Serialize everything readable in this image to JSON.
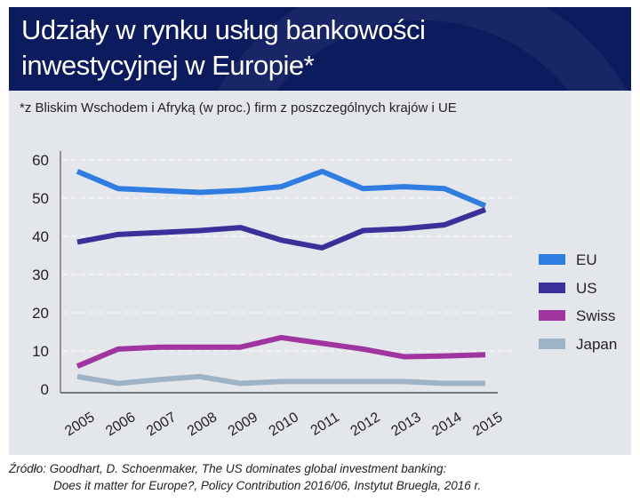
{
  "title_line1": "Udziały w rynku usług bankowości",
  "title_line2": "inwestycyjnej w Europie*",
  "subtitle": "*z Bliskim Wschodem i Afryką (w proc.) firm z poszczególnych krajów i UE",
  "source_line1": "Źródło: Goodhart, D. Schoenmaker, The US dominates global investment banking:",
  "source_line2": "Does it matter for Europe?, Policy Contribution 2016/06, Instytut Bruegla, 2016 r.",
  "colors": {
    "title_band": "#0c1a5e",
    "panel": "#e3e7ec"
  },
  "chart_data": {
    "type": "line",
    "title": "Udziały w rynku usług bankowości inwestycyjnej w Europie*",
    "xlabel": "",
    "ylabel": "",
    "x": [
      "2005",
      "2006",
      "2007",
      "2008",
      "2009",
      "2010",
      "2011",
      "2012",
      "2013",
      "2014",
      "2015"
    ],
    "yticks": [
      "0",
      "10",
      "20",
      "30",
      "40",
      "50",
      "60"
    ],
    "ylim": [
      0,
      60
    ],
    "grid": true,
    "legend_position": "right",
    "series": [
      {
        "name": "EU",
        "color": "#2f7de1",
        "values": [
          57,
          52.5,
          52,
          51.5,
          52,
          53,
          57,
          52.5,
          53,
          52.5,
          48
        ]
      },
      {
        "name": "US",
        "color": "#3b2f9a",
        "values": [
          38.5,
          40.5,
          41,
          41.5,
          42.3,
          39,
          37,
          41.5,
          42,
          43,
          47
        ]
      },
      {
        "name": "Swiss",
        "color": "#a0359f",
        "values": [
          6,
          10.5,
          11,
          11,
          11,
          13.5,
          12,
          10.5,
          8.5,
          8.7,
          9
        ]
      },
      {
        "name": "Japan",
        "color": "#9fb3c6",
        "values": [
          3.3,
          1.5,
          2.5,
          3.3,
          1.5,
          2,
          2,
          2,
          2,
          1.5,
          1.5
        ]
      }
    ]
  }
}
